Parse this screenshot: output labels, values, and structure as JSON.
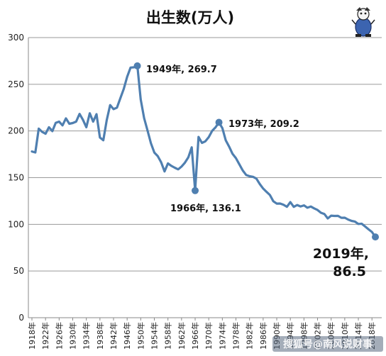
{
  "chart_data": {
    "type": "line",
    "title": "出生数(万人)",
    "ylim": [
      0,
      300
    ],
    "yticks": [
      0,
      50,
      100,
      150,
      200,
      250,
      300
    ],
    "xlim": [
      1918,
      2019
    ],
    "xtick_years": [
      1918,
      1922,
      1926,
      1930,
      1934,
      1938,
      1942,
      1946,
      1950,
      1954,
      1958,
      1962,
      1966,
      1970,
      1974,
      1978,
      1982,
      1986,
      1990,
      1994,
      1998,
      2002,
      2006,
      2010,
      2014,
      2018
    ],
    "xtick_labels": [
      "1918年",
      "1922年",
      "1926年",
      "1930年",
      "1934年",
      "1938年",
      "1942年",
      "1946年",
      "1950年",
      "1954年",
      "1958年",
      "1962年",
      "1966年",
      "1970年",
      "1974年",
      "1978年",
      "1982年",
      "1986年",
      "1990年",
      "1994年",
      "1998年",
      "2002年",
      "2006年",
      "2010年",
      "2014年",
      "2018年"
    ],
    "grid": "horizontal",
    "line_color": "#4f7fb0",
    "series": [
      {
        "points": [
          [
            1918,
            178.0
          ],
          [
            1919,
            177.0
          ],
          [
            1920,
            202.5
          ],
          [
            1921,
            199.0
          ],
          [
            1922,
            197.0
          ],
          [
            1923,
            204.0
          ],
          [
            1924,
            199.8
          ],
          [
            1925,
            208.6
          ],
          [
            1926,
            210.0
          ],
          [
            1927,
            206.0
          ],
          [
            1928,
            213.5
          ],
          [
            1929,
            207.7
          ],
          [
            1930,
            208.5
          ],
          [
            1931,
            210.0
          ],
          [
            1932,
            218.3
          ],
          [
            1933,
            212.0
          ],
          [
            1934,
            204.0
          ],
          [
            1935,
            219.0
          ],
          [
            1936,
            210.0
          ],
          [
            1937,
            218.0
          ],
          [
            1938,
            193.0
          ],
          [
            1939,
            190.0
          ],
          [
            1940,
            211.5
          ],
          [
            1941,
            227.7
          ],
          [
            1942,
            223.4
          ],
          [
            1943,
            225.0
          ],
          [
            1944,
            235.0
          ],
          [
            1945,
            245.0
          ],
          [
            1946,
            258.0
          ],
          [
            1947,
            267.9
          ],
          [
            1948,
            268.2
          ],
          [
            1949,
            269.7
          ],
          [
            1950,
            233.8
          ],
          [
            1951,
            213.8
          ],
          [
            1952,
            200.5
          ],
          [
            1953,
            186.8
          ],
          [
            1954,
            176.9
          ],
          [
            1955,
            173.1
          ],
          [
            1956,
            166.5
          ],
          [
            1957,
            156.7
          ],
          [
            1958,
            165.3
          ],
          [
            1959,
            162.6
          ],
          [
            1960,
            160.6
          ],
          [
            1961,
            158.9
          ],
          [
            1962,
            161.9
          ],
          [
            1963,
            166.0
          ],
          [
            1964,
            171.7
          ],
          [
            1965,
            182.4
          ],
          [
            1966,
            136.1
          ],
          [
            1967,
            193.6
          ],
          [
            1968,
            187.2
          ],
          [
            1969,
            188.9
          ],
          [
            1970,
            193.4
          ],
          [
            1971,
            200.1
          ],
          [
            1972,
            203.9
          ],
          [
            1973,
            209.2
          ],
          [
            1974,
            203.0
          ],
          [
            1975,
            190.1
          ],
          [
            1976,
            183.3
          ],
          [
            1977,
            175.5
          ],
          [
            1978,
            170.9
          ],
          [
            1979,
            164.3
          ],
          [
            1980,
            157.7
          ],
          [
            1981,
            152.9
          ],
          [
            1982,
            151.5
          ],
          [
            1983,
            150.9
          ],
          [
            1984,
            149.0
          ],
          [
            1985,
            143.2
          ],
          [
            1986,
            138.3
          ],
          [
            1987,
            134.7
          ],
          [
            1988,
            131.4
          ],
          [
            1989,
            124.7
          ],
          [
            1990,
            122.2
          ],
          [
            1991,
            122.3
          ],
          [
            1992,
            120.9
          ],
          [
            1993,
            118.8
          ],
          [
            1994,
            123.8
          ],
          [
            1995,
            118.7
          ],
          [
            1996,
            120.7
          ],
          [
            1997,
            119.2
          ],
          [
            1998,
            120.3
          ],
          [
            1999,
            117.8
          ],
          [
            2000,
            119.1
          ],
          [
            2001,
            117.1
          ],
          [
            2002,
            115.4
          ],
          [
            2003,
            112.4
          ],
          [
            2004,
            111.1
          ],
          [
            2005,
            106.3
          ],
          [
            2006,
            109.3
          ],
          [
            2007,
            109.0
          ],
          [
            2008,
            109.1
          ],
          [
            2009,
            107.0
          ],
          [
            2010,
            107.1
          ],
          [
            2011,
            105.1
          ],
          [
            2012,
            103.7
          ],
          [
            2013,
            103.0
          ],
          [
            2014,
            100.4
          ],
          [
            2015,
            100.6
          ],
          [
            2016,
            97.7
          ],
          [
            2017,
            94.6
          ],
          [
            2018,
            91.8
          ],
          [
            2019,
            86.5
          ]
        ]
      }
    ],
    "annotations": [
      {
        "x": 1949,
        "y": 269.7,
        "label": "1949年, 269.7"
      },
      {
        "x": 1966,
        "y": 136.1,
        "label": "1966年, 136.1"
      },
      {
        "x": 1973,
        "y": 209.2,
        "label": "1973年, 209.2"
      },
      {
        "x": 2019,
        "y": 86.5,
        "label_line1": "2019年,",
        "label_line2": "86.5"
      }
    ]
  },
  "watermark": "搜狐号@南风说财事",
  "logo_icon": "mascot-cartoon-icon"
}
